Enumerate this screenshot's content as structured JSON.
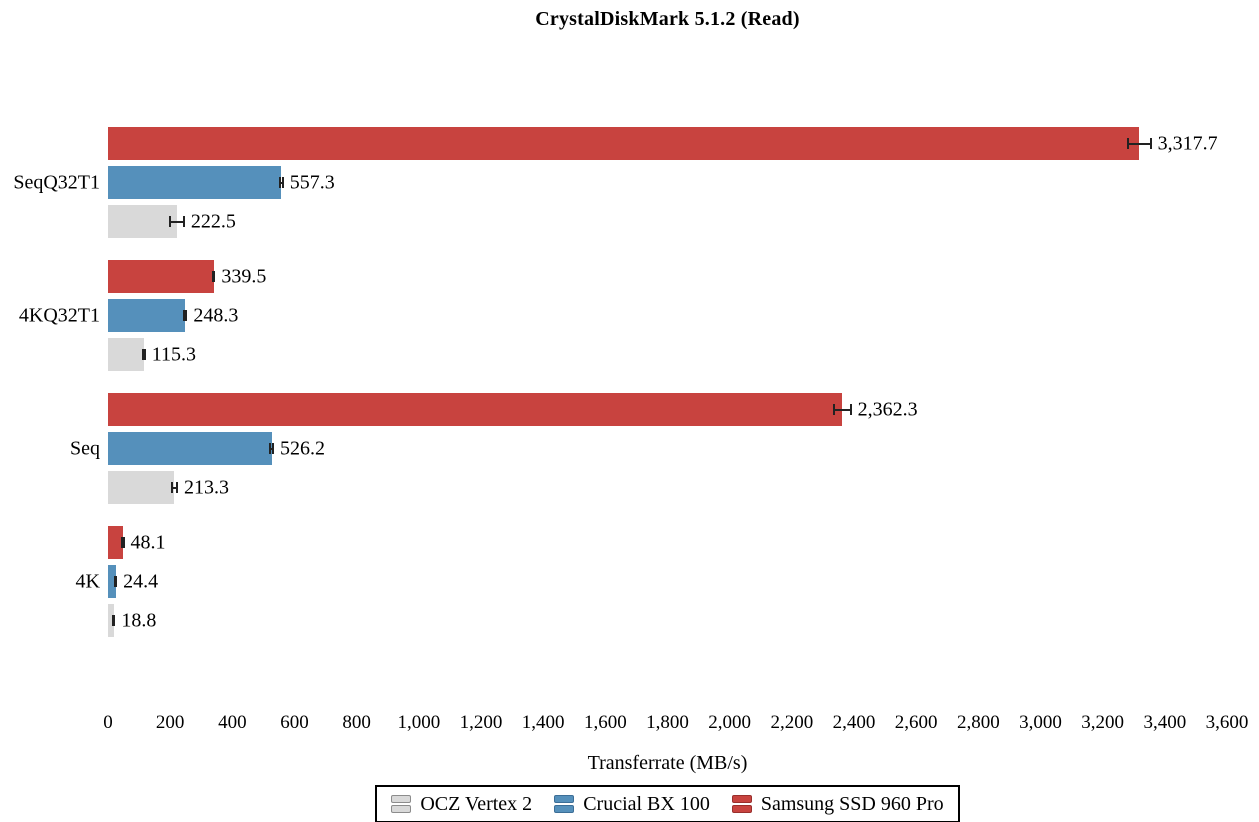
{
  "chart_data": {
    "type": "bar",
    "orientation": "horizontal",
    "title": "CrystalDiskMark 5.1.2 (Read)",
    "xlabel": "Transferrate (MB/s)",
    "categories": [
      "SeqQ32T1",
      "4KQ32T1",
      "Seq",
      "4K"
    ],
    "series": [
      {
        "name": "OCZ Vertex 2",
        "color": "#d9d9d9",
        "border_color": "#8c8c8c",
        "values": [
          222.5,
          115.3,
          213.3,
          18.8
        ],
        "errors": [
          25,
          6,
          12,
          4
        ]
      },
      {
        "name": "Crucial BX 100",
        "color": "#5590bb",
        "border_color": "#3c6e97",
        "values": [
          557.3,
          248.3,
          526.2,
          24.4
        ],
        "errors": [
          8,
          7,
          8,
          4
        ]
      },
      {
        "name": "Samsung SSD 960 Pro",
        "color": "#c8433f",
        "border_color": "#992f2c",
        "values": [
          3317.7,
          339.5,
          2362.3,
          48.1
        ],
        "errors": [
          40,
          6,
          30,
          5
        ]
      }
    ],
    "value_labels": [
      "3,317.7",
      "557.3",
      "222.5",
      "339.5",
      "248.3",
      "115.3",
      "2,362.3",
      "526.2",
      "213.3",
      "48.1",
      "24.4",
      "18.8"
    ],
    "bar_order_top_to_bottom": [
      "Samsung SSD 960 Pro",
      "Crucial BX 100",
      "OCZ Vertex 2"
    ],
    "xlim": [
      0,
      3600
    ],
    "xticks": [
      0,
      200,
      400,
      600,
      800,
      1000,
      1200,
      1400,
      1600,
      1800,
      2000,
      2200,
      2400,
      2600,
      2800,
      3000,
      3200,
      3400,
      3600
    ],
    "grid": false,
    "axis_lines": false,
    "error_bars": true,
    "legend_position": "bottom"
  }
}
